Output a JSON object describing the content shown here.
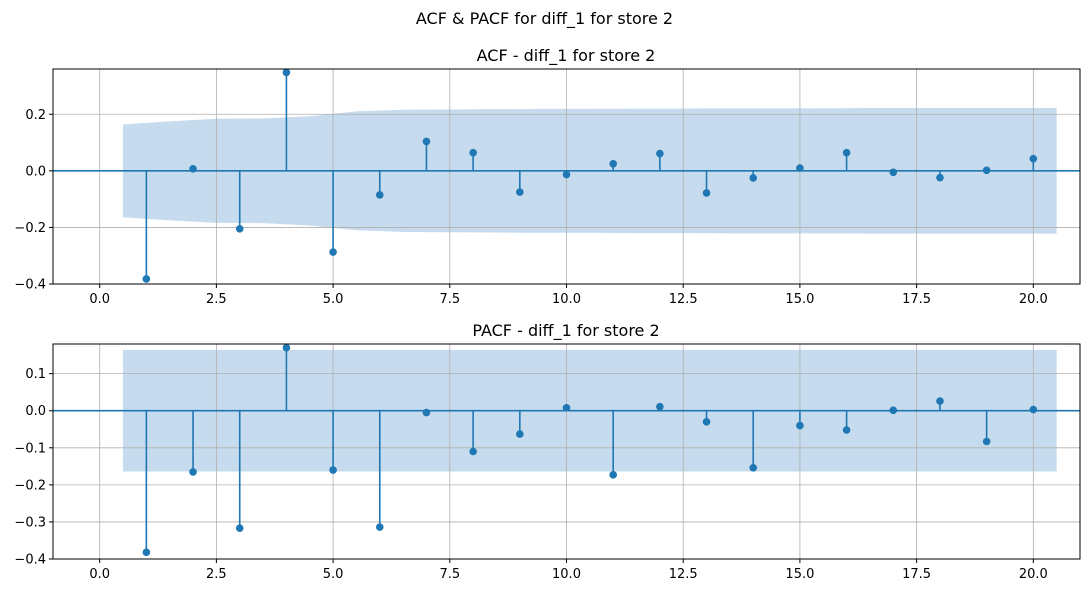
{
  "suptitle": "ACF & PACF for diff_1 for store 2",
  "colors": {
    "stem": "#1f77b4",
    "band": "#c6dbed",
    "grid": "#b0b0b0"
  },
  "chart_data": [
    {
      "type": "scatter",
      "title": "ACF - diff_1 for store 2",
      "xlim": [
        -1,
        21
      ],
      "ylim": [
        -0.4,
        0.36
      ],
      "xticks": [
        0.0,
        2.5,
        5.0,
        7.5,
        10.0,
        12.5,
        15.0,
        17.5,
        20.0
      ],
      "xtick_labels": [
        "0.0",
        "2.5",
        "5.0",
        "7.5",
        "10.0",
        "12.5",
        "15.0",
        "17.5",
        "20.0"
      ],
      "yticks": [
        -0.4,
        -0.2,
        0.0,
        0.2
      ],
      "ytick_labels": [
        "−0.4",
        "−0.2",
        "0.0",
        "0.2"
      ],
      "grid": true,
      "lags": [
        1,
        2,
        3,
        4,
        5,
        6,
        7,
        8,
        9,
        10,
        11,
        12,
        13,
        14,
        15,
        16,
        17,
        18,
        19,
        20
      ],
      "values": [
        -0.382,
        0.007,
        -0.205,
        0.348,
        -0.287,
        -0.085,
        0.104,
        0.064,
        -0.075,
        -0.013,
        0.025,
        0.061,
        -0.078,
        -0.025,
        0.01,
        0.064,
        -0.005,
        -0.024,
        0.002,
        0.043
      ],
      "confint": {
        "x": [
          0.5,
          1.5,
          2.5,
          3.5,
          4.5,
          5.5,
          6.5,
          7.5,
          8.5,
          9.5,
          10.5,
          11.5,
          12.5,
          13.5,
          14.5,
          15.5,
          16.5,
          17.5,
          18.5,
          19.5,
          20.5
        ],
        "upper": [
          0.164,
          0.175,
          0.184,
          0.185,
          0.193,
          0.21,
          0.216,
          0.217,
          0.218,
          0.219,
          0.219,
          0.22,
          0.22,
          0.221,
          0.221,
          0.221,
          0.222,
          0.222,
          0.222,
          0.222,
          0.222
        ]
      }
    },
    {
      "type": "scatter",
      "title": "PACF - diff_1 for store 2",
      "xlim": [
        -1,
        21
      ],
      "ylim": [
        -0.4,
        0.18
      ],
      "xticks": [
        0.0,
        2.5,
        5.0,
        7.5,
        10.0,
        12.5,
        15.0,
        17.5,
        20.0
      ],
      "xtick_labels": [
        "0.0",
        "2.5",
        "5.0",
        "7.5",
        "10.0",
        "12.5",
        "15.0",
        "17.5",
        "20.0"
      ],
      "yticks": [
        -0.4,
        -0.3,
        -0.2,
        -0.1,
        0.0,
        0.1
      ],
      "ytick_labels": [
        "−0.4",
        "−0.3",
        "−0.2",
        "−0.1",
        "0.0",
        "0.1"
      ],
      "grid": true,
      "lags": [
        1,
        2,
        3,
        4,
        5,
        6,
        7,
        8,
        9,
        10,
        11,
        12,
        13,
        14,
        15,
        16,
        17,
        18,
        19,
        20
      ],
      "values": [
        -0.382,
        -0.165,
        -0.317,
        0.17,
        -0.16,
        -0.314,
        -0.005,
        -0.11,
        -0.063,
        0.008,
        -0.173,
        0.011,
        -0.03,
        -0.154,
        -0.04,
        -0.052,
        0.001,
        0.026,
        -0.083,
        0.003
      ],
      "confint": {
        "x": [
          0.5,
          20.5
        ],
        "upper": [
          0.164,
          0.164
        ]
      }
    }
  ]
}
